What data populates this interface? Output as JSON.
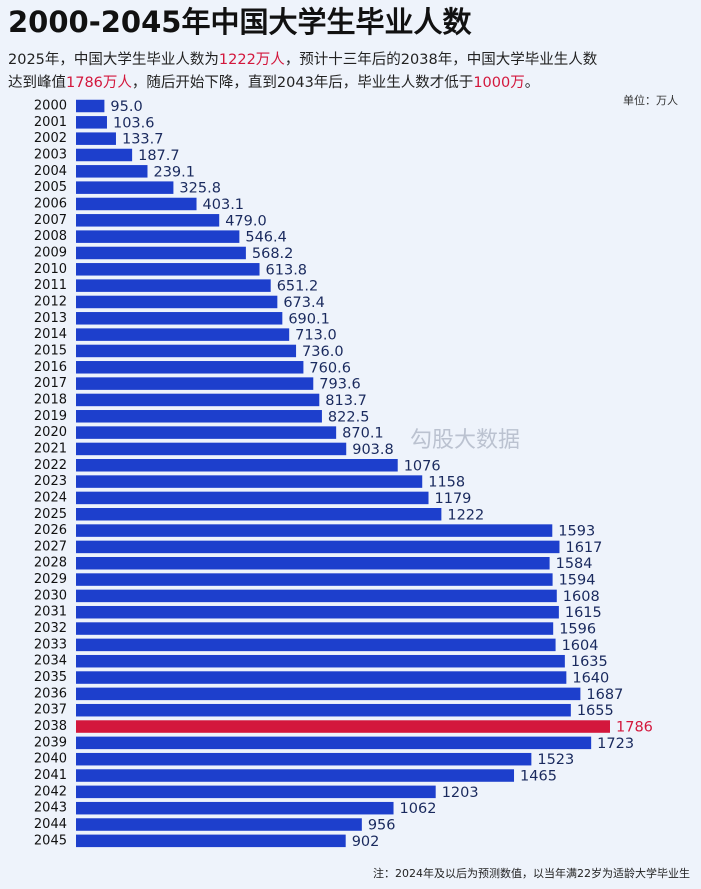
{
  "chart_data": {
    "type": "barh",
    "title": "2000-2045年中国大学生毕业人数",
    "subtitle": [
      {
        "text": "2025年，中国大学生毕业人数为",
        "highlight": false
      },
      {
        "text": "1222万人",
        "highlight": true
      },
      {
        "text": "，预计十三年后的2038年，中国大学毕业生人数",
        "highlight": false
      },
      {
        "text": "达到峰值",
        "highlight": false
      },
      {
        "text": "1786万人",
        "highlight": true
      },
      {
        "text": "，随后开始下降，直到2043年后，毕业生人数才低于",
        "highlight": false
      },
      {
        "text": "1000万",
        "highlight": true
      },
      {
        "text": "。",
        "highlight": false
      }
    ],
    "unit": "单位：万人",
    "watermark": "勾股大数据",
    "footnote": "注：2024年及以后为预测数值，以当年满22岁为适龄大学毕业生",
    "categories": [
      "2000",
      "2001",
      "2002",
      "2003",
      "2004",
      "2005",
      "2006",
      "2007",
      "2008",
      "2009",
      "2010",
      "2011",
      "2012",
      "2013",
      "2014",
      "2015",
      "2016",
      "2017",
      "2018",
      "2019",
      "2020",
      "2021",
      "2022",
      "2023",
      "2024",
      "2025",
      "2026",
      "2027",
      "2028",
      "2029",
      "2030",
      "2031",
      "2032",
      "2033",
      "2034",
      "2035",
      "2036",
      "2037",
      "2038",
      "2039",
      "2040",
      "2041",
      "2042",
      "2043",
      "2044",
      "2045"
    ],
    "values": [
      95.0,
      103.6,
      133.7,
      187.7,
      239.1,
      325.8,
      403.1,
      479.0,
      546.4,
      568.2,
      613.8,
      651.2,
      673.4,
      690.1,
      713.0,
      736.0,
      760.6,
      793.6,
      813.7,
      822.5,
      870.1,
      903.8,
      1076,
      1158,
      1179,
      1222,
      1593,
      1617,
      1584,
      1594,
      1608,
      1615,
      1596,
      1604,
      1635,
      1640,
      1687,
      1655,
      1786,
      1723,
      1523,
      1465,
      1203,
      1062,
      956,
      902
    ],
    "value_labels": [
      "95.0",
      "103.6",
      "133.7",
      "187.7",
      "239.1",
      "325.8",
      "403.1",
      "479.0",
      "546.4",
      "568.2",
      "613.8",
      "651.2",
      "673.4",
      "690.1",
      "713.0",
      "736.0",
      "760.6",
      "793.6",
      "813.7",
      "822.5",
      "870.1",
      "903.8",
      "1076",
      "1158",
      "1179",
      "1222",
      "1593",
      "1617",
      "1584",
      "1594",
      "1608",
      "1615",
      "1596",
      "1604",
      "1635",
      "1640",
      "1687",
      "1655",
      "1786",
      "1723",
      "1523",
      "1465",
      "1203",
      "1062",
      "956",
      "902"
    ],
    "color": "#1d3fcc",
    "highlight_category": "2038",
    "highlight_color": "#d3173c"
  }
}
